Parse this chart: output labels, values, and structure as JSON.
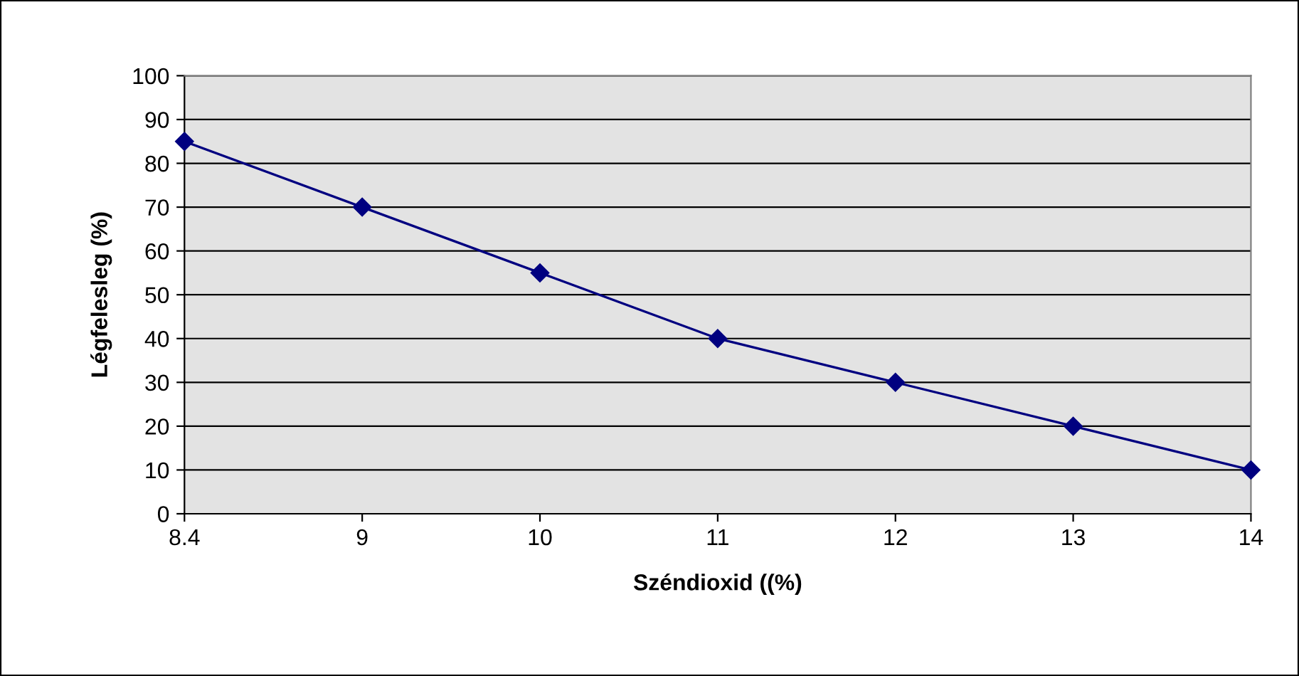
{
  "chart_data": {
    "type": "line",
    "xlabel": "Széndioxid ((%)",
    "ylabel": "Légfelesleg (%)",
    "categories": [
      "8.4",
      "9",
      "10",
      "11",
      "12",
      "13",
      "14"
    ],
    "series": [
      {
        "color": "#000080",
        "values": [
          85,
          70,
          55,
          40,
          30,
          20,
          10
        ]
      }
    ],
    "ylim": [
      0,
      100
    ],
    "yticks": [
      0,
      10,
      20,
      30,
      40,
      50,
      60,
      70,
      80,
      90,
      100
    ],
    "grid": "y",
    "legend": false,
    "marker": "diamond",
    "line_style": "solid"
  }
}
